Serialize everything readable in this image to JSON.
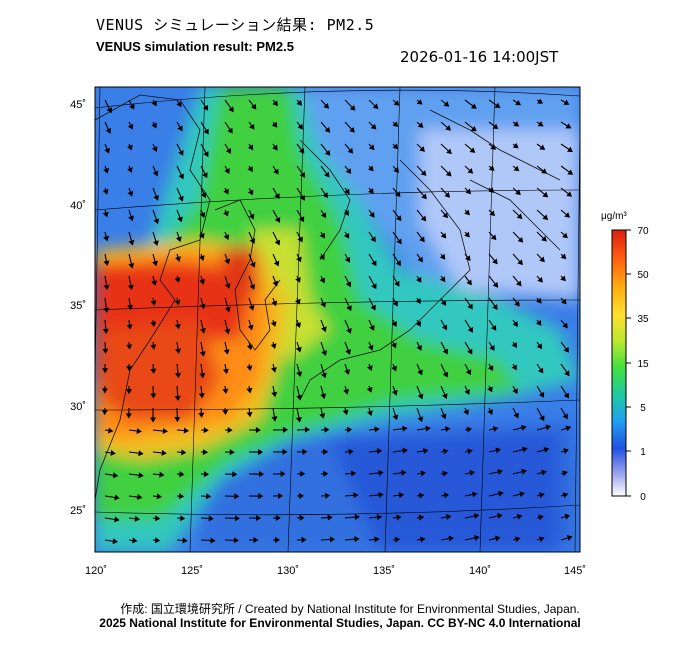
{
  "title_jp": "VENUS シミュレーション結果: PM2.5",
  "title_en": "VENUS simulation result: PM2.5",
  "timestamp": "2026-01-16 14:00JST",
  "credit_line1": "作成: 国立環境研究所 / Created by National Institute for Environmental Studies, Japan.",
  "credit_line2": "2025 National Institute for Environmental Studies, Japan. CC BY-NC 4.0 International",
  "map": {
    "lon_ticks": [
      "120˚",
      "125˚",
      "130˚",
      "135˚",
      "140˚",
      "145˚"
    ],
    "lat_ticks": [
      "45˚",
      "40˚",
      "35˚",
      "30˚",
      "25˚"
    ],
    "lon_range": [
      120,
      145
    ],
    "lat_range": [
      23,
      46
    ]
  },
  "colorbar": {
    "unit": "μg/m³",
    "labels": [
      "70",
      "50",
      "35",
      "15",
      "5",
      "1",
      "0"
    ],
    "colors": [
      "#d92010",
      "#ff5a10",
      "#ffb010",
      "#ffe030",
      "#b8e830",
      "#40e040",
      "#20c8a0",
      "#20a0f0",
      "#2050e0",
      "#a0a8f0",
      "#ffffff"
    ]
  },
  "regions": {
    "high_pm_color": "#e83018",
    "orange_color": "#ff9020",
    "yellow_color": "#d0e830",
    "green_color": "#40d040",
    "cyan_color": "#30c8d0",
    "blue_color": "#3070e8",
    "lightblue_color": "#6090f0"
  }
}
